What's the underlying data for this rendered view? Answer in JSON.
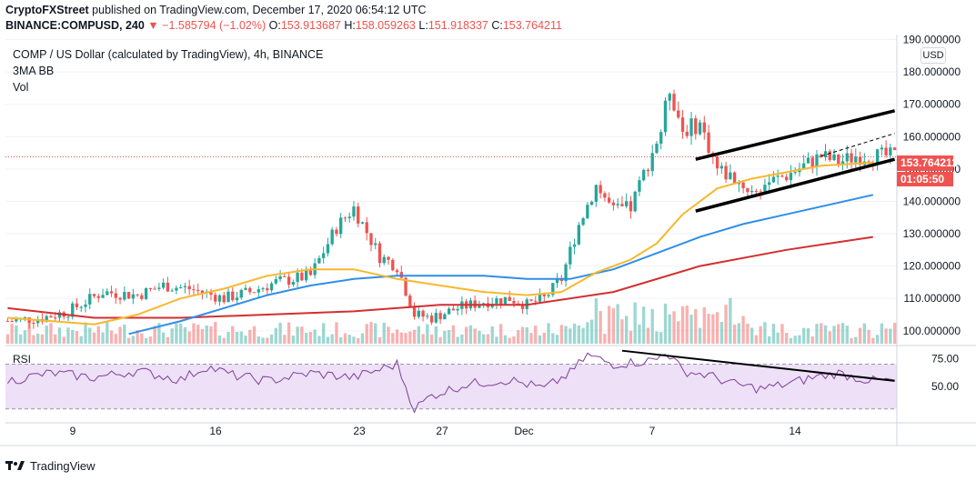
{
  "header": {
    "line1_brand": "CryptoFXStreet",
    "line1_rest": "published on TradingView.com, December 17, 2020 06:54:12 UTC",
    "line2_symbol": "BINANCE:COMPUSD, 240",
    "line2_change": "▼ −1.585794 (−1.02%)",
    "o_label": "O:",
    "o_value": "153.913687",
    "h_label": "H:",
    "h_value": "158.059263",
    "l_label": "L:",
    "l_value": "151.918337",
    "c_label": "C:",
    "c_value": "153.764211"
  },
  "legend": {
    "title": "COMP / US Dollar (calculated by TradingView), 4h, BINANCE",
    "indicator": "3MA BB",
    "volume": "Vol"
  },
  "price_axis": {
    "currency": "USD",
    "last_price": "153.764211",
    "countdown": "01:05:50"
  },
  "rsi": {
    "label": "RSI"
  },
  "footer": {
    "brand": "TradingView"
  },
  "colors": {
    "up": "#26a69a",
    "down": "#ef5350",
    "ma50": "#f7b82e",
    "ma100": "#2f8ee8",
    "ma200": "#d32f2f",
    "rsi_line": "#7e3f98",
    "rsi_band": "#ede0f7"
  },
  "chart_data": [
    {
      "type": "candlestick",
      "title": "COMP / US Dollar, 4h",
      "ylim": [
        96,
        191
      ],
      "y_ticks": [
        100,
        110,
        120,
        130,
        140,
        150,
        160,
        170,
        180,
        190
      ],
      "y_tick_labels": [
        "100.000000",
        "110.000000",
        "120.000000",
        "130.000000",
        "140.000000",
        "150.000000",
        "160.000000",
        "170.000000",
        "180.000000",
        "190.000000"
      ],
      "x_ticks": [
        "9",
        "16",
        "23",
        "27",
        "Dec",
        "7",
        "14"
      ],
      "anchors": [
        [
          0,
          103
        ],
        [
          8,
          104
        ],
        [
          14,
          106
        ],
        [
          22,
          112
        ],
        [
          30,
          111
        ],
        [
          36,
          114
        ],
        [
          42,
          113
        ],
        [
          50,
          110
        ],
        [
          56,
          112
        ],
        [
          62,
          115
        ],
        [
          70,
          117
        ],
        [
          76,
          132
        ],
        [
          80,
          138
        ],
        [
          86,
          123
        ],
        [
          90,
          120
        ],
        [
          94,
          105
        ],
        [
          98,
          104
        ],
        [
          104,
          107
        ],
        [
          110,
          109
        ],
        [
          116,
          110
        ],
        [
          120,
          108
        ],
        [
          124,
          110
        ],
        [
          128,
          116
        ],
        [
          132,
          133
        ],
        [
          136,
          145
        ],
        [
          140,
          137
        ],
        [
          144,
          138
        ],
        [
          148,
          152
        ],
        [
          151,
          162
        ],
        [
          153,
          175
        ],
        [
          156,
          162
        ],
        [
          160,
          164
        ],
        [
          164,
          150
        ],
        [
          168,
          147
        ],
        [
          172,
          143
        ],
        [
          176,
          146
        ],
        [
          180,
          148
        ],
        [
          184,
          151
        ],
        [
          188,
          154
        ],
        [
          192,
          152
        ],
        [
          196,
          154
        ],
        [
          200,
          154
        ]
      ],
      "ma50": [
        [
          0,
          104
        ],
        [
          20,
          102
        ],
        [
          30,
          105
        ],
        [
          40,
          110
        ],
        [
          50,
          113
        ],
        [
          60,
          117
        ],
        [
          70,
          119
        ],
        [
          80,
          119
        ],
        [
          90,
          116
        ],
        [
          100,
          114
        ],
        [
          110,
          112
        ],
        [
          120,
          111
        ],
        [
          128,
          112
        ],
        [
          136,
          118
        ],
        [
          144,
          122
        ],
        [
          150,
          127
        ],
        [
          156,
          136
        ],
        [
          164,
          144
        ],
        [
          172,
          147
        ],
        [
          180,
          149
        ],
        [
          188,
          151
        ],
        [
          200,
          152
        ]
      ],
      "ma100": [
        [
          28,
          99
        ],
        [
          40,
          103
        ],
        [
          50,
          107
        ],
        [
          60,
          111
        ],
        [
          70,
          114
        ],
        [
          80,
          116
        ],
        [
          90,
          117
        ],
        [
          100,
          117
        ],
        [
          110,
          117
        ],
        [
          120,
          116
        ],
        [
          130,
          116
        ],
        [
          140,
          119
        ],
        [
          150,
          124
        ],
        [
          160,
          129
        ],
        [
          170,
          133
        ],
        [
          180,
          136
        ],
        [
          200,
          142
        ]
      ],
      "ma200": [
        [
          0,
          107
        ],
        [
          20,
          104
        ],
        [
          40,
          104
        ],
        [
          60,
          105
        ],
        [
          80,
          106
        ],
        [
          100,
          108
        ],
        [
          120,
          108
        ],
        [
          140,
          112
        ],
        [
          160,
          120
        ],
        [
          180,
          125
        ],
        [
          200,
          129
        ]
      ],
      "channel_upper": {
        "from": [
          159,
          153
        ],
        "to": [
          205,
          168
        ]
      },
      "channel_lower": {
        "from": [
          159,
          137
        ],
        "to": [
          205,
          153
        ]
      },
      "channel_mid_dashed": {
        "from": [
          188,
          154
        ],
        "to": [
          205,
          161
        ]
      },
      "current_price_line": 153.76
    },
    {
      "type": "line",
      "name": "RSI",
      "ylim": [
        20,
        85
      ],
      "y_ticks": [
        50,
        75
      ],
      "y_tick_labels": [
        "50.00",
        "75.00"
      ],
      "band": [
        30,
        70
      ],
      "anchors": [
        [
          0,
          55
        ],
        [
          10,
          62
        ],
        [
          20,
          58
        ],
        [
          30,
          64
        ],
        [
          40,
          56
        ],
        [
          46,
          68
        ],
        [
          52,
          60
        ],
        [
          60,
          55
        ],
        [
          70,
          62
        ],
        [
          80,
          58
        ],
        [
          90,
          70
        ],
        [
          94,
          30
        ],
        [
          98,
          42
        ],
        [
          106,
          52
        ],
        [
          116,
          56
        ],
        [
          124,
          48
        ],
        [
          130,
          62
        ],
        [
          134,
          78
        ],
        [
          140,
          70
        ],
        [
          146,
          72
        ],
        [
          150,
          74
        ],
        [
          152,
          82
        ],
        [
          156,
          64
        ],
        [
          162,
          60
        ],
        [
          168,
          52
        ],
        [
          174,
          48
        ],
        [
          180,
          52
        ],
        [
          186,
          58
        ],
        [
          192,
          62
        ],
        [
          196,
          58
        ],
        [
          200,
          55
        ]
      ],
      "trendline": {
        "from": [
          142,
          82
        ],
        "to": [
          205,
          55
        ]
      }
    }
  ]
}
